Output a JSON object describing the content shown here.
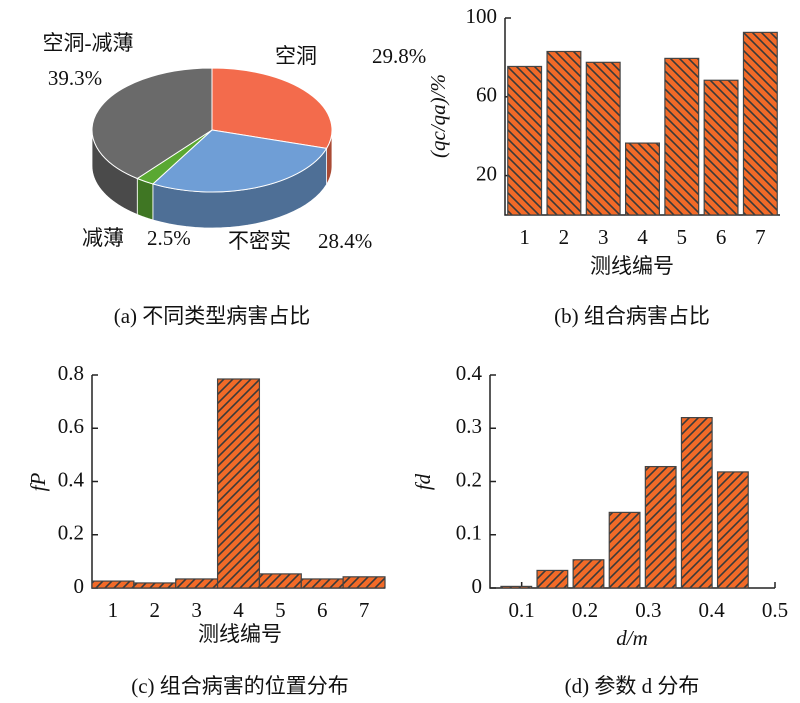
{
  "chart_data": [
    {
      "type": "pie",
      "title": "(a) 不同类型病害占比",
      "categories": [
        "空洞",
        "不密实",
        "减薄",
        "空洞-减薄"
      ],
      "values": [
        29.8,
        28.4,
        2.5,
        39.3
      ],
      "value_labels": [
        "29.8%",
        "28.4%",
        "2.5%",
        "39.3%"
      ],
      "colors": [
        "#f36b4c",
        "#6f9ed6",
        "#5aa832",
        "#6a6a6a"
      ]
    },
    {
      "type": "bar",
      "title": "(b) 组合病害占比",
      "xlabel": "测线编号",
      "ylabel": "(qc/qa)/%",
      "categories": [
        "1",
        "2",
        "3",
        "4",
        "5",
        "6",
        "7"
      ],
      "values": [
        75.4,
        83,
        77.5,
        36.5,
        79.5,
        68.4,
        92.7
      ],
      "color": "#f26a28",
      "ylim": [
        0,
        100
      ],
      "yticks": [
        20,
        60,
        100
      ]
    },
    {
      "type": "bar",
      "title": "(c) 组合病害的位置分布",
      "xlabel": "测线编号",
      "ylabel": "fP",
      "categories": [
        "1",
        "2",
        "3",
        "4",
        "5",
        "6",
        "7"
      ],
      "values": [
        0.026,
        0.019,
        0.034,
        0.785,
        0.053,
        0.034,
        0.042
      ],
      "color": "#f26a28",
      "ylim": [
        0,
        0.8
      ],
      "yticks": [
        0,
        0.2,
        0.4,
        0.6,
        0.8
      ]
    },
    {
      "type": "histogram",
      "title": "(d) 参数 d 分布",
      "xlabel": "d/m",
      "ylabel": "fd",
      "bins": [
        0.063,
        0.12,
        0.177,
        0.234,
        0.291,
        0.348,
        0.405,
        0.462
      ],
      "values": [
        0.003,
        0.033,
        0.053,
        0.142,
        0.228,
        0.32,
        0.218
      ],
      "color": "#f26a28",
      "xlim": [
        0.05,
        0.5
      ],
      "xticks": [
        0.1,
        0.2,
        0.3,
        0.4,
        0.5
      ],
      "ylim": [
        0,
        0.4
      ],
      "yticks": [
        0,
        0.1,
        0.2,
        0.3,
        0.4
      ]
    }
  ]
}
